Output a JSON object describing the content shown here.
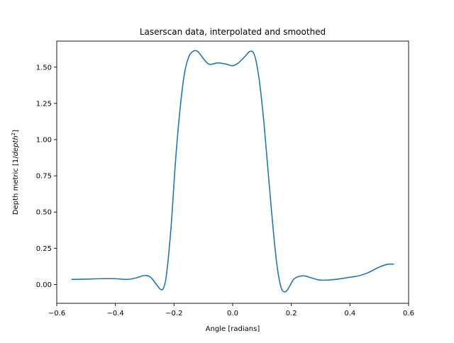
{
  "chart_data": {
    "type": "line",
    "title": "Laserscan data, interpolated and smoothed",
    "xlabel": "Angle [radians]",
    "ylabel": "Depth metric [1/depth²]",
    "ylabel_parts": {
      "prefix": "Depth metric [1/",
      "italic": "depth",
      "sup": "2",
      "suffix": "]"
    },
    "xlim": [
      -0.6,
      0.6
    ],
    "ylim": [
      -0.13,
      1.68
    ],
    "xticks": [
      -0.6,
      -0.4,
      -0.2,
      0.0,
      0.2,
      0.4,
      0.6
    ],
    "xtick_labels": [
      "−0.6",
      "−0.4",
      "−0.2",
      "0.0",
      "0.2",
      "0.4",
      "0.6"
    ],
    "yticks": [
      0.0,
      0.25,
      0.5,
      0.75,
      1.0,
      1.25,
      1.5
    ],
    "ytick_labels": [
      "0.00",
      "0.25",
      "0.50",
      "0.75",
      "1.00",
      "1.25",
      "1.50"
    ],
    "grid": false,
    "legend": "none",
    "series": [
      {
        "color": "#1f77b4",
        "x": [
          -0.55,
          -0.5,
          -0.45,
          -0.4,
          -0.36,
          -0.33,
          -0.3,
          -0.28,
          -0.26,
          -0.245,
          -0.235,
          -0.225,
          -0.21,
          -0.195,
          -0.18,
          -0.165,
          -0.15,
          -0.135,
          -0.12,
          -0.1,
          -0.08,
          -0.05,
          -0.02,
          0.0,
          0.02,
          0.04,
          0.06,
          0.075,
          0.09,
          0.105,
          0.12,
          0.135,
          0.15,
          0.165,
          0.18,
          0.195,
          0.21,
          0.24,
          0.27,
          0.3,
          0.35,
          0.4,
          0.43,
          0.46,
          0.5,
          0.53,
          0.55
        ],
        "y": [
          0.035,
          0.037,
          0.04,
          0.04,
          0.035,
          0.045,
          0.062,
          0.05,
          0.0,
          -0.035,
          -0.02,
          0.08,
          0.4,
          0.85,
          1.2,
          1.45,
          1.57,
          1.61,
          1.61,
          1.56,
          1.52,
          1.53,
          1.52,
          1.51,
          1.53,
          1.57,
          1.61,
          1.58,
          1.42,
          1.15,
          0.8,
          0.45,
          0.15,
          -0.02,
          -0.05,
          -0.01,
          0.04,
          0.06,
          0.045,
          0.03,
          0.035,
          0.05,
          0.06,
          0.08,
          0.12,
          0.14,
          0.14
        ]
      }
    ]
  }
}
